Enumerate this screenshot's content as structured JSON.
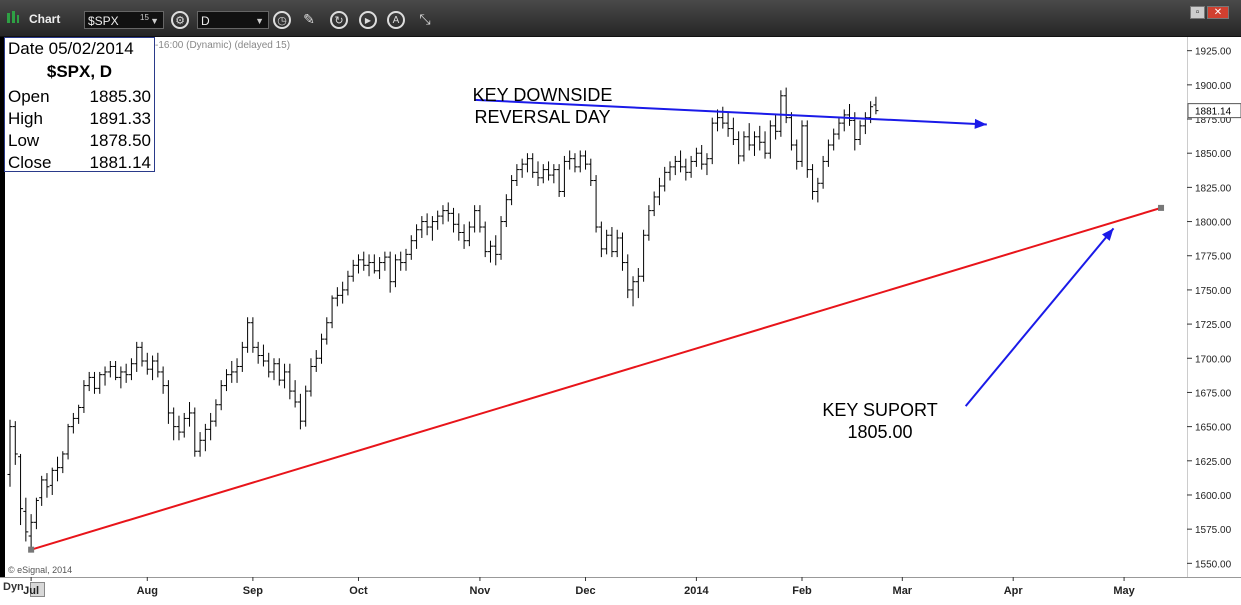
{
  "toolbar": {
    "title": "Chart",
    "symbol": "$SPX",
    "symbol_superscript": "15",
    "interval": "D",
    "icons": [
      "chart-logo-icon",
      "symbol-dropdown-icon",
      "settings-gear-icon",
      "interval-dropdown-icon",
      "clock-icon",
      "pencil-icon",
      "refresh-icon",
      "play-icon",
      "alert-icon",
      "cursor-link-icon",
      "window-minimize-icon",
      "window-close-icon"
    ],
    "accent": "#2ea044"
  },
  "subtitle": "-16:00 (Dynamic) (delayed 15)",
  "infobox": {
    "date_label": "Date 05/02/2014",
    "symbol_line": "$SPX, D",
    "rows": [
      {
        "label": "Open",
        "value": "1885.30"
      },
      {
        "label": "High",
        "value": "1891.33"
      },
      {
        "label": "Low",
        "value": "1878.50"
      },
      {
        "label": "Close",
        "value": "1881.14"
      }
    ]
  },
  "annotations": {
    "reversal": [
      "KEY DOWNSIDE",
      "REVERSAL DAY"
    ],
    "support": [
      "KEY SUPORT",
      "1805.00"
    ]
  },
  "copyright": "© eSignal, 2014",
  "bottom": {
    "dyn_label": "Dyn"
  },
  "chart_data": {
    "type": "bar",
    "ylim": [
      1540,
      1935
    ],
    "yticks": [
      1550,
      1575,
      1600,
      1625,
      1650,
      1675,
      1700,
      1725,
      1750,
      1775,
      1800,
      1825,
      1850,
      1875,
      1900,
      1925
    ],
    "ytick_labels": [
      "1550.00",
      "1575.00",
      "1600.00",
      "1625.00",
      "1650.00",
      "1675.00",
      "1700.00",
      "1725.00",
      "1750.00",
      "1775.00",
      "1800.00",
      "1825.00",
      "1850.00",
      "1875.00",
      "1900.00",
      "1925.00"
    ],
    "last_price": 1881.14,
    "last_price_label": "1881.14",
    "xticks": [
      {
        "label": "Jul",
        "index": 4
      },
      {
        "label": "Aug",
        "index": 26
      },
      {
        "label": "Sep",
        "index": 46
      },
      {
        "label": "Oct",
        "index": 66
      },
      {
        "label": "Nov",
        "index": 89
      },
      {
        "label": "Dec",
        "index": 109
      },
      {
        "label": "2014",
        "index": 130
      },
      {
        "label": "Feb",
        "index": 150
      },
      {
        "label": "Mar",
        "index": 169
      },
      {
        "label": "Apr",
        "index": 190
      },
      {
        "label": "May",
        "index": 211
      }
    ],
    "ohlc": [
      [
        1615,
        1655,
        1606,
        1650
      ],
      [
        1650,
        1654,
        1622,
        1630
      ],
      [
        1628,
        1630,
        1578,
        1590
      ],
      [
        1588,
        1598,
        1566,
        1573
      ],
      [
        1570,
        1586,
        1560,
        1580
      ],
      [
        1580,
        1598,
        1575,
        1596
      ],
      [
        1598,
        1614,
        1592,
        1611
      ],
      [
        1611,
        1616,
        1598,
        1606
      ],
      [
        1607,
        1620,
        1600,
        1618
      ],
      [
        1618,
        1628,
        1610,
        1620
      ],
      [
        1620,
        1632,
        1616,
        1630
      ],
      [
        1630,
        1652,
        1626,
        1650
      ],
      [
        1650,
        1660,
        1645,
        1656
      ],
      [
        1656,
        1666,
        1652,
        1664
      ],
      [
        1664,
        1684,
        1660,
        1680
      ],
      [
        1680,
        1690,
        1676,
        1686
      ],
      [
        1686,
        1690,
        1674,
        1678
      ],
      [
        1678,
        1690,
        1674,
        1688
      ],
      [
        1688,
        1694,
        1680,
        1690
      ],
      [
        1690,
        1698,
        1686,
        1694
      ],
      [
        1694,
        1698,
        1684,
        1686
      ],
      [
        1686,
        1694,
        1678,
        1690
      ],
      [
        1690,
        1696,
        1682,
        1688
      ],
      [
        1688,
        1700,
        1684,
        1696
      ],
      [
        1696,
        1712,
        1690,
        1708
      ],
      [
        1708,
        1712,
        1694,
        1698
      ],
      [
        1698,
        1704,
        1688,
        1692
      ],
      [
        1692,
        1702,
        1684,
        1698
      ],
      [
        1698,
        1704,
        1686,
        1690
      ],
      [
        1690,
        1694,
        1674,
        1680
      ],
      [
        1680,
        1684,
        1652,
        1660
      ],
      [
        1660,
        1664,
        1640,
        1650
      ],
      [
        1650,
        1658,
        1640,
        1646
      ],
      [
        1646,
        1660,
        1642,
        1656
      ],
      [
        1656,
        1668,
        1650,
        1660
      ],
      [
        1660,
        1664,
        1628,
        1632
      ],
      [
        1632,
        1646,
        1628,
        1640
      ],
      [
        1640,
        1652,
        1632,
        1648
      ],
      [
        1648,
        1660,
        1640,
        1654
      ],
      [
        1654,
        1670,
        1650,
        1666
      ],
      [
        1666,
        1684,
        1662,
        1680
      ],
      [
        1680,
        1692,
        1676,
        1688
      ],
      [
        1688,
        1698,
        1682,
        1690
      ],
      [
        1690,
        1700,
        1682,
        1694
      ],
      [
        1694,
        1712,
        1690,
        1708
      ],
      [
        1708,
        1730,
        1704,
        1726
      ],
      [
        1726,
        1730,
        1704,
        1708
      ],
      [
        1708,
        1712,
        1696,
        1702
      ],
      [
        1702,
        1710,
        1694,
        1698
      ],
      [
        1698,
        1704,
        1686,
        1690
      ],
      [
        1690,
        1700,
        1684,
        1696
      ],
      [
        1696,
        1700,
        1680,
        1684
      ],
      [
        1684,
        1696,
        1678,
        1690
      ],
      [
        1690,
        1696,
        1670,
        1676
      ],
      [
        1676,
        1684,
        1664,
        1668
      ],
      [
        1668,
        1674,
        1648,
        1654
      ],
      [
        1654,
        1680,
        1650,
        1676
      ],
      [
        1676,
        1700,
        1672,
        1694
      ],
      [
        1694,
        1706,
        1690,
        1700
      ],
      [
        1700,
        1718,
        1696,
        1714
      ],
      [
        1714,
        1730,
        1710,
        1726
      ],
      [
        1726,
        1746,
        1722,
        1744
      ],
      [
        1744,
        1752,
        1738,
        1746
      ],
      [
        1746,
        1756,
        1740,
        1750
      ],
      [
        1750,
        1764,
        1746,
        1760
      ],
      [
        1760,
        1772,
        1756,
        1768
      ],
      [
        1768,
        1776,
        1762,
        1772
      ],
      [
        1772,
        1778,
        1764,
        1768
      ],
      [
        1768,
        1776,
        1760,
        1770
      ],
      [
        1770,
        1776,
        1762,
        1764
      ],
      [
        1764,
        1774,
        1758,
        1770
      ],
      [
        1770,
        1778,
        1764,
        1774
      ],
      [
        1774,
        1778,
        1748,
        1756
      ],
      [
        1756,
        1776,
        1752,
        1772
      ],
      [
        1772,
        1778,
        1764,
        1770
      ],
      [
        1770,
        1780,
        1764,
        1776
      ],
      [
        1776,
        1790,
        1772,
        1786
      ],
      [
        1786,
        1798,
        1780,
        1794
      ],
      [
        1794,
        1804,
        1788,
        1800
      ],
      [
        1800,
        1806,
        1790,
        1796
      ],
      [
        1796,
        1804,
        1786,
        1800
      ],
      [
        1800,
        1808,
        1794,
        1804
      ],
      [
        1804,
        1812,
        1798,
        1808
      ],
      [
        1808,
        1814,
        1800,
        1806
      ],
      [
        1806,
        1810,
        1792,
        1798
      ],
      [
        1798,
        1806,
        1786,
        1792
      ],
      [
        1792,
        1798,
        1780,
        1786
      ],
      [
        1786,
        1800,
        1782,
        1796
      ],
      [
        1796,
        1812,
        1792,
        1808
      ],
      [
        1808,
        1812,
        1792,
        1796
      ],
      [
        1796,
        1800,
        1774,
        1778
      ],
      [
        1778,
        1786,
        1770,
        1782
      ],
      [
        1782,
        1790,
        1768,
        1776
      ],
      [
        1776,
        1804,
        1772,
        1800
      ],
      [
        1800,
        1820,
        1796,
        1816
      ],
      [
        1816,
        1834,
        1812,
        1830
      ],
      [
        1830,
        1842,
        1826,
        1838
      ],
      [
        1838,
        1846,
        1832,
        1842
      ],
      [
        1842,
        1850,
        1836,
        1846
      ],
      [
        1846,
        1850,
        1832,
        1836
      ],
      [
        1836,
        1844,
        1826,
        1832
      ],
      [
        1832,
        1842,
        1828,
        1838
      ],
      [
        1838,
        1844,
        1830,
        1834
      ],
      [
        1834,
        1842,
        1828,
        1838
      ],
      [
        1838,
        1842,
        1818,
        1822
      ],
      [
        1822,
        1848,
        1818,
        1844
      ],
      [
        1844,
        1852,
        1838,
        1846
      ],
      [
        1846,
        1850,
        1836,
        1840
      ],
      [
        1840,
        1852,
        1836,
        1848
      ],
      [
        1848,
        1852,
        1838,
        1842
      ],
      [
        1842,
        1846,
        1826,
        1830
      ],
      [
        1830,
        1834,
        1792,
        1796
      ],
      [
        1796,
        1800,
        1774,
        1780
      ],
      [
        1780,
        1794,
        1776,
        1790
      ],
      [
        1790,
        1796,
        1774,
        1778
      ],
      [
        1778,
        1794,
        1774,
        1788
      ],
      [
        1788,
        1792,
        1764,
        1770
      ],
      [
        1770,
        1776,
        1744,
        1750
      ],
      [
        1750,
        1760,
        1738,
        1756
      ],
      [
        1756,
        1766,
        1744,
        1760
      ],
      [
        1760,
        1794,
        1756,
        1790
      ],
      [
        1790,
        1812,
        1786,
        1808
      ],
      [
        1808,
        1822,
        1804,
        1818
      ],
      [
        1818,
        1832,
        1812,
        1826
      ],
      [
        1826,
        1840,
        1822,
        1836
      ],
      [
        1836,
        1844,
        1830,
        1840
      ],
      [
        1840,
        1848,
        1834,
        1844
      ],
      [
        1844,
        1852,
        1836,
        1840
      ],
      [
        1840,
        1846,
        1830,
        1836
      ],
      [
        1836,
        1848,
        1832,
        1844
      ],
      [
        1844,
        1854,
        1840,
        1850
      ],
      [
        1850,
        1856,
        1838,
        1842
      ],
      [
        1842,
        1850,
        1834,
        1846
      ],
      [
        1846,
        1876,
        1842,
        1872
      ],
      [
        1872,
        1882,
        1866,
        1876
      ],
      [
        1876,
        1884,
        1868,
        1872
      ],
      [
        1872,
        1880,
        1862,
        1868
      ],
      [
        1868,
        1876,
        1856,
        1860
      ],
      [
        1860,
        1866,
        1842,
        1848
      ],
      [
        1848,
        1866,
        1844,
        1862
      ],
      [
        1862,
        1872,
        1852,
        1856
      ],
      [
        1856,
        1866,
        1848,
        1862
      ],
      [
        1862,
        1870,
        1852,
        1858
      ],
      [
        1858,
        1866,
        1846,
        1850
      ],
      [
        1850,
        1874,
        1846,
        1870
      ],
      [
        1870,
        1878,
        1860,
        1866
      ],
      [
        1866,
        1896,
        1862,
        1892
      ],
      [
        1892,
        1898,
        1872,
        1876
      ],
      [
        1876,
        1880,
        1852,
        1856
      ],
      [
        1856,
        1860,
        1838,
        1844
      ],
      [
        1844,
        1874,
        1840,
        1870
      ],
      [
        1870,
        1874,
        1832,
        1838
      ],
      [
        1838,
        1842,
        1816,
        1822
      ],
      [
        1822,
        1832,
        1814,
        1828
      ],
      [
        1828,
        1848,
        1824,
        1844
      ],
      [
        1844,
        1860,
        1840,
        1856
      ],
      [
        1856,
        1868,
        1852,
        1864
      ],
      [
        1864,
        1876,
        1860,
        1872
      ],
      [
        1872,
        1882,
        1866,
        1878
      ],
      [
        1878,
        1886,
        1870,
        1874
      ],
      [
        1874,
        1880,
        1852,
        1860
      ],
      [
        1860,
        1874,
        1856,
        1870
      ],
      [
        1870,
        1880,
        1864,
        1876
      ],
      [
        1876,
        1888,
        1872,
        1884
      ],
      [
        1885.3,
        1891.33,
        1878.5,
        1881.14
      ]
    ],
    "trendline": {
      "start_index": 4,
      "start_value": 1560,
      "end_index": 218,
      "end_value": 1810,
      "color": "#e8141a"
    },
    "arrows": [
      {
        "name": "reversal-arrow",
        "from_index": 88,
        "from_value": 1889,
        "to_index": 185,
        "to_value": 1871,
        "color": "#1a1ae8"
      },
      {
        "name": "support-arrow",
        "from_index": 181,
        "from_value": 1665,
        "to_index": 209,
        "to_value": 1795,
        "color": "#1a1ae8"
      }
    ]
  }
}
